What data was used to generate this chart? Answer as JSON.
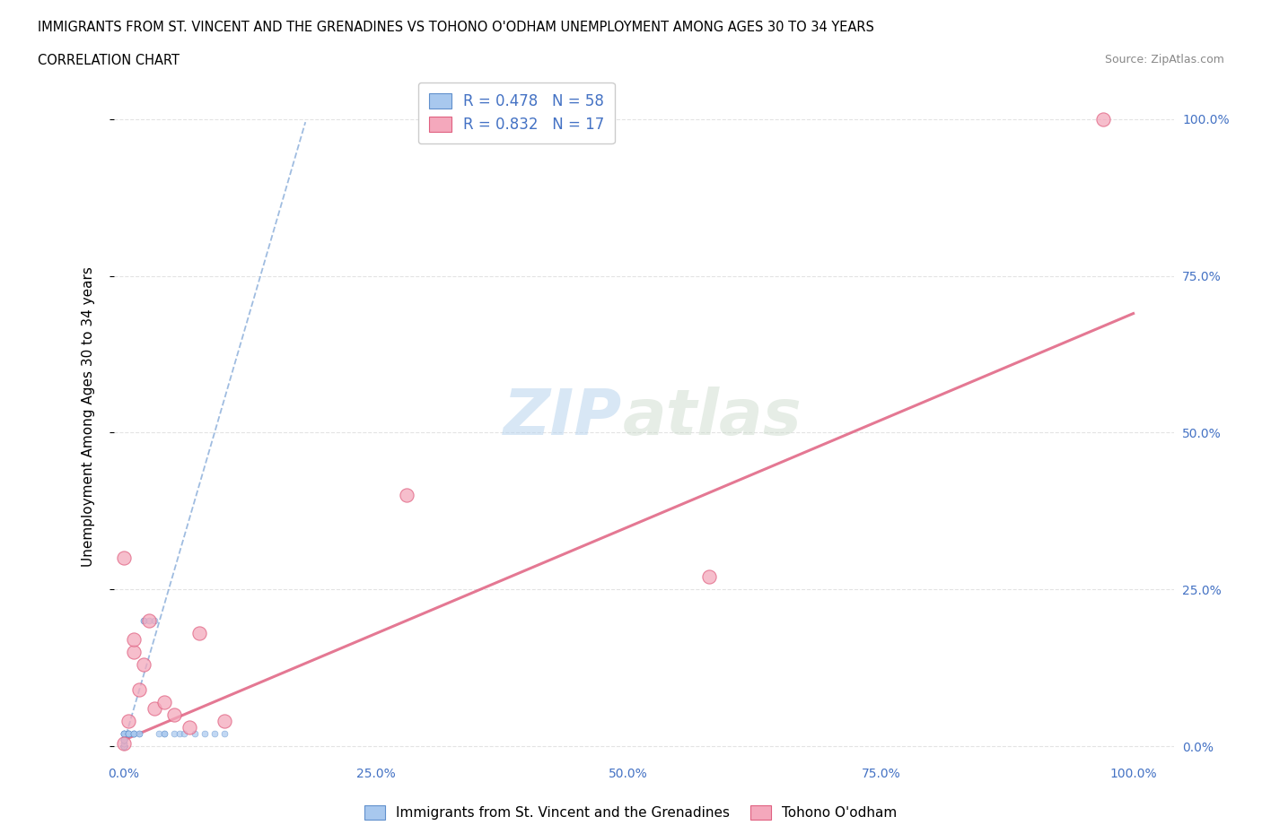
{
  "title_line1": "IMMIGRANTS FROM ST. VINCENT AND THE GRENADINES VS TOHONO O'ODHAM UNEMPLOYMENT AMONG AGES 30 TO 34 YEARS",
  "title_line2": "CORRELATION CHART",
  "source": "Source: ZipAtlas.com",
  "ylabel": "Unemployment Among Ages 30 to 34 years",
  "xlim": [
    -0.01,
    1.04
  ],
  "ylim": [
    -0.02,
    1.07
  ],
  "xticks": [
    0.0,
    0.25,
    0.5,
    0.75,
    1.0
  ],
  "yticks": [
    0.0,
    0.25,
    0.5,
    0.75,
    1.0
  ],
  "xticklabels": [
    "0.0%",
    "25.0%",
    "50.0%",
    "75.0%",
    "100.0%"
  ],
  "right_yticklabels": [
    "0.0%",
    "25.0%",
    "50.0%",
    "75.0%",
    "100.0%"
  ],
  "watermark_zip": "ZIP",
  "watermark_atlas": "atlas",
  "legend_r1": "R = 0.478",
  "legend_n1": "N = 58",
  "legend_r2": "R = 0.832",
  "legend_n2": "N = 17",
  "legend_label1": "Immigrants from St. Vincent and the Grenadines",
  "legend_label2": "Tohono O'odham",
  "color_blue": "#A8C8EE",
  "color_pink": "#F4A8BC",
  "color_blue_dark": "#6090CC",
  "color_pink_dark": "#E06080",
  "color_legend_text": "#4472C4",
  "grid_color": "#DDDDDD",
  "blue_scatter_x": [
    0.0,
    0.0,
    0.0,
    0.0,
    0.0,
    0.0,
    0.0,
    0.0,
    0.0,
    0.0,
    0.0,
    0.0,
    0.0,
    0.0,
    0.0,
    0.0,
    0.0,
    0.0,
    0.0,
    0.0,
    0.0,
    0.0,
    0.0,
    0.0,
    0.0,
    0.0,
    0.0,
    0.0,
    0.0,
    0.0,
    0.0,
    0.0,
    0.0,
    0.005,
    0.005,
    0.005,
    0.005,
    0.005,
    0.01,
    0.01,
    0.01,
    0.01,
    0.015,
    0.015,
    0.02,
    0.02,
    0.025,
    0.03,
    0.035,
    0.04,
    0.04,
    0.05,
    0.055,
    0.06,
    0.07,
    0.08,
    0.09,
    0.1
  ],
  "blue_scatter_y": [
    0.0,
    0.0,
    0.0,
    0.0,
    0.0,
    0.0,
    0.0,
    0.0,
    0.0,
    0.0,
    0.0,
    0.0,
    0.0,
    0.0,
    0.0,
    0.0,
    0.0,
    0.0,
    0.0,
    0.0,
    0.005,
    0.005,
    0.01,
    0.01,
    0.01,
    0.01,
    0.01,
    0.01,
    0.02,
    0.02,
    0.02,
    0.02,
    0.02,
    0.02,
    0.02,
    0.02,
    0.02,
    0.02,
    0.02,
    0.02,
    0.02,
    0.02,
    0.02,
    0.02,
    0.2,
    0.2,
    0.2,
    0.2,
    0.02,
    0.02,
    0.02,
    0.02,
    0.02,
    0.02,
    0.02,
    0.02,
    0.02,
    0.02
  ],
  "pink_scatter_x": [
    0.0,
    0.0,
    0.005,
    0.01,
    0.01,
    0.015,
    0.02,
    0.025,
    0.03,
    0.04,
    0.05,
    0.065,
    0.075,
    0.1,
    0.28,
    0.58,
    0.97
  ],
  "pink_scatter_y": [
    0.005,
    0.3,
    0.04,
    0.15,
    0.17,
    0.09,
    0.13,
    0.2,
    0.06,
    0.07,
    0.05,
    0.03,
    0.18,
    0.04,
    0.4,
    0.27,
    1.0
  ],
  "blue_trend_slope": 5.5,
  "blue_trend_intercept": 0.005,
  "blue_trend_x_start": 0.0,
  "blue_trend_x_end": 0.18,
  "pink_trend_slope": 0.68,
  "pink_trend_intercept": 0.01
}
